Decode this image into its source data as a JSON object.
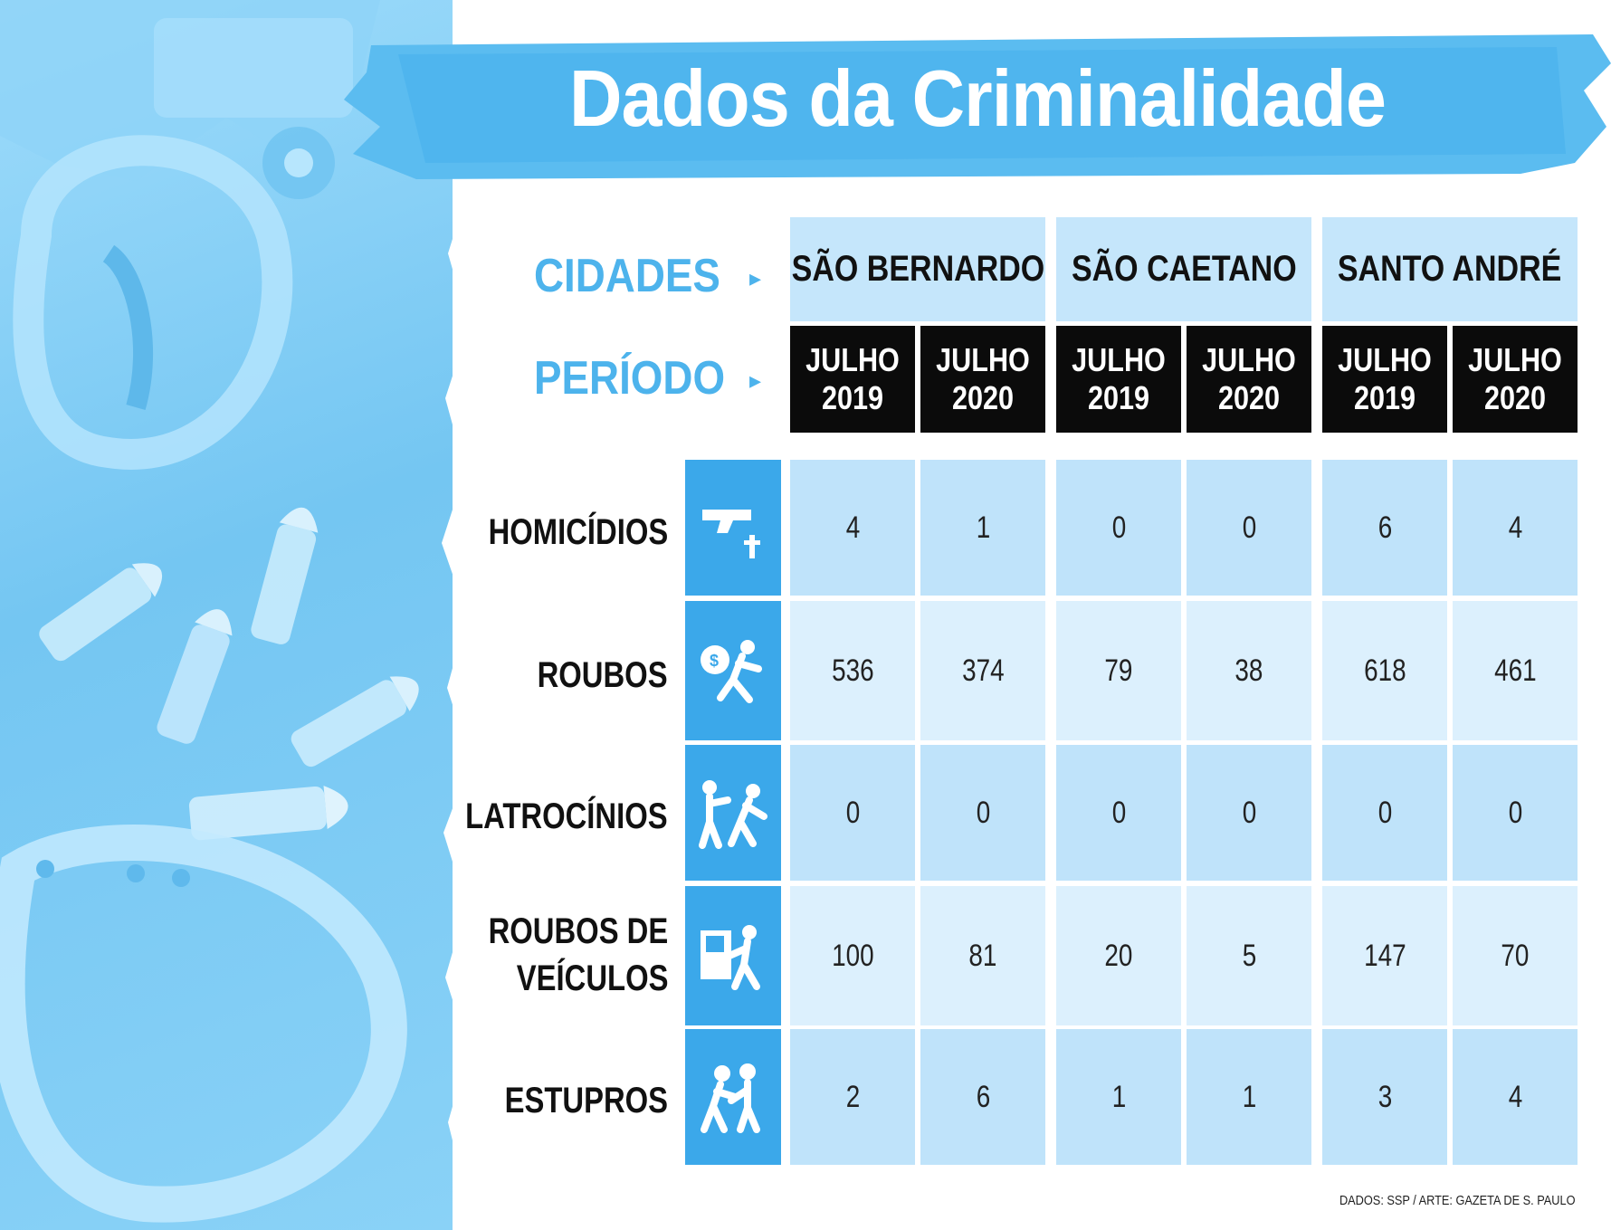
{
  "title": "Dados da Criminalidade",
  "header_labels": {
    "cities": "CIDADES",
    "period": "PERÍODO"
  },
  "cities": [
    "SÃO BERNARDO",
    "SÃO CAETANO",
    "SANTO ANDRÉ"
  ],
  "periods": [
    {
      "month": "JULHO",
      "year": "2019"
    },
    {
      "month": "JULHO",
      "year": "2020"
    },
    {
      "month": "JULHO",
      "year": "2019"
    },
    {
      "month": "JULHO",
      "year": "2020"
    },
    {
      "month": "JULHO",
      "year": "2019"
    },
    {
      "month": "JULHO",
      "year": "2020"
    }
  ],
  "rows": [
    {
      "label_lines": [
        "HOMICÍDIOS"
      ],
      "icon": "gun-cross-icon",
      "values": [
        "4",
        "1",
        "0",
        "0",
        "6",
        "4"
      ]
    },
    {
      "label_lines": [
        "ROUBOS"
      ],
      "icon": "thief-moneybag-icon",
      "values": [
        "536",
        "374",
        "79",
        "38",
        "618",
        "461"
      ]
    },
    {
      "label_lines": [
        "LATROCÍNIOS"
      ],
      "icon": "robbery-shooting-icon",
      "values": [
        "0",
        "0",
        "0",
        "0",
        "0",
        "0"
      ]
    },
    {
      "label_lines": [
        "ROUBOS DE",
        "VEÍCULOS"
      ],
      "icon": "car-theft-icon",
      "values": [
        "100",
        "81",
        "20",
        "5",
        "147",
        "70"
      ]
    },
    {
      "label_lines": [
        "ESTUPROS"
      ],
      "icon": "assault-icon",
      "values": [
        "2",
        "6",
        "1",
        "1",
        "3",
        "4"
      ]
    }
  ],
  "credit": "DADOS: SSP / ARTE: GAZETA DE S. PAULO",
  "colors": {
    "accent_blue": "#4db3ec",
    "banner_blue": "#5bbcf0",
    "icon_blue": "#3ba8ea",
    "cell_dark": "#bfe3fa",
    "cell_light": "#dcf0fd",
    "period_bg": "#0b0b0b"
  }
}
